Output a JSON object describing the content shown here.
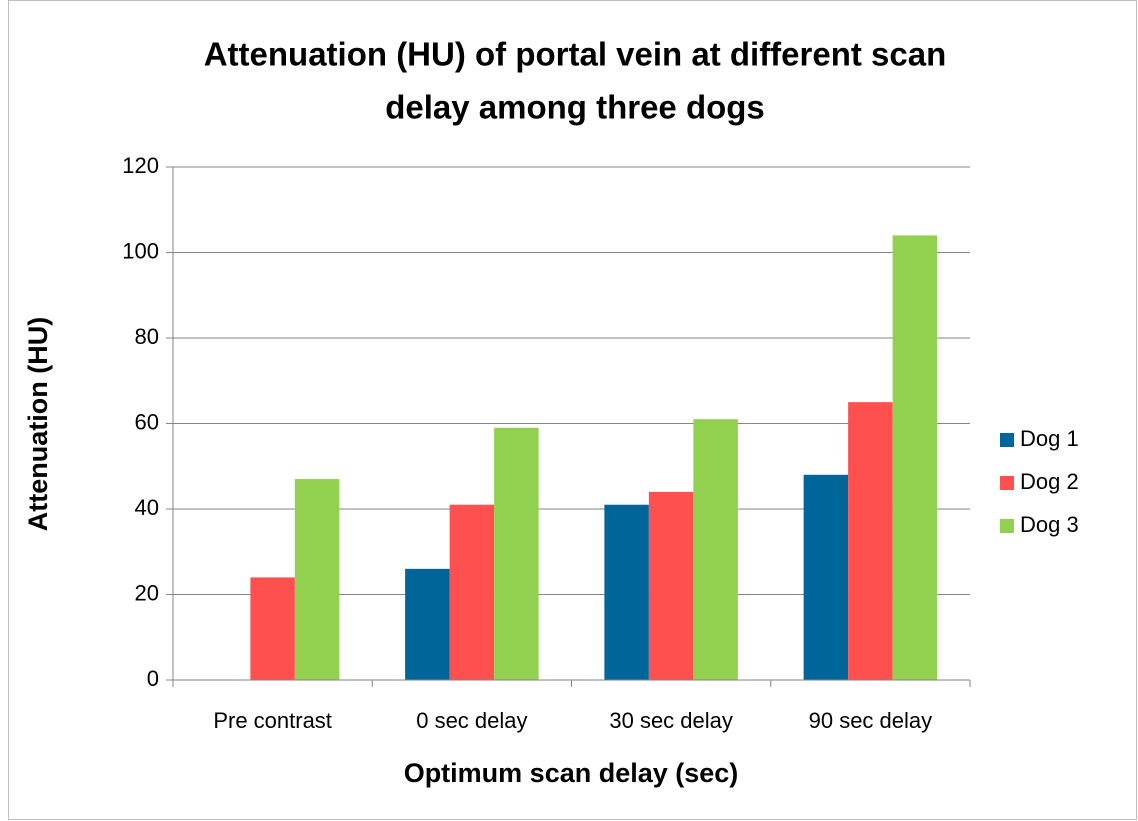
{
  "chart_data": {
    "type": "bar",
    "title": [
      "Attenuation (HU) of portal vein at different scan",
      "delay among three dogs"
    ],
    "x_label": "Optimum scan delay (sec)",
    "y_label": "Attenuation (HU)",
    "categories": [
      "Pre contrast",
      "0 sec delay",
      "30 sec delay",
      "90 sec delay"
    ],
    "series": [
      {
        "name": "Dog 1",
        "color": "#00669a",
        "values": [
          0,
          26,
          41,
          48
        ]
      },
      {
        "name": "Dog 2",
        "color": "#ff5050",
        "values": [
          24,
          41,
          44,
          65
        ]
      },
      {
        "name": "Dog 3",
        "color": "#92d050",
        "values": [
          47,
          59,
          61,
          104
        ]
      }
    ],
    "ylim": [
      0,
      120
    ],
    "yticks": [
      0,
      20,
      40,
      60,
      80,
      100,
      120
    ],
    "grid": true,
    "legend": "right"
  }
}
